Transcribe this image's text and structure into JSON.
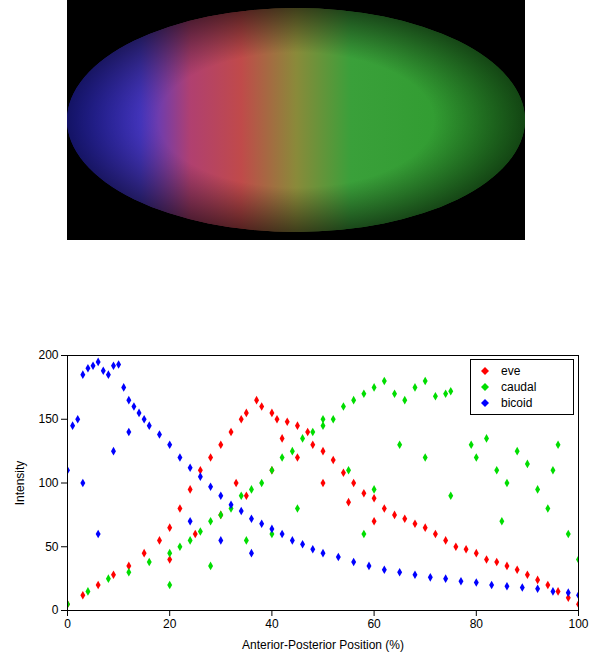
{
  "chart_data": {
    "type": "scatter",
    "x_label": "Anterior-Posterior Position (%)",
    "y_label": "Intensity",
    "xlim": [
      0,
      100
    ],
    "ylim": [
      0,
      200
    ],
    "xticks": [
      0,
      20,
      40,
      60,
      80,
      100
    ],
    "yticks": [
      0,
      50,
      100,
      150,
      200
    ],
    "grid": false,
    "legend": "top-right",
    "series": [
      {
        "name": "eve",
        "color": "#ff0000",
        "marker": "diamond",
        "x": [
          0,
          3,
          6,
          9,
          12,
          15,
          18,
          20,
          22,
          24,
          26,
          28,
          30,
          32,
          34,
          35,
          37,
          38,
          40,
          41,
          43,
          45,
          47,
          48,
          50,
          52,
          54,
          56,
          58,
          60,
          62,
          64,
          66,
          68,
          70,
          72,
          74,
          76,
          78,
          80,
          82,
          84,
          86,
          88,
          90,
          92,
          94,
          96,
          98,
          100,
          20,
          25,
          30,
          35,
          40,
          45,
          50,
          55,
          60,
          33,
          42
        ],
        "values": [
          5,
          12,
          20,
          28,
          35,
          45,
          55,
          65,
          80,
          95,
          110,
          120,
          130,
          140,
          150,
          155,
          165,
          160,
          155,
          150,
          148,
          145,
          140,
          130,
          125,
          118,
          108,
          100,
          92,
          88,
          80,
          75,
          72,
          68,
          65,
          60,
          55,
          50,
          48,
          45,
          40,
          38,
          35,
          32,
          28,
          24,
          20,
          15,
          10,
          5,
          40,
          60,
          75,
          90,
          110,
          120,
          100,
          85,
          70,
          100,
          135
        ]
      },
      {
        "name": "caudal",
        "color": "#00dd00",
        "marker": "diamond",
        "x": [
          0,
          4,
          8,
          12,
          16,
          20,
          22,
          24,
          26,
          28,
          30,
          32,
          34,
          36,
          38,
          40,
          42,
          44,
          46,
          48,
          50,
          52,
          54,
          56,
          58,
          60,
          62,
          64,
          66,
          68,
          70,
          72,
          74,
          75,
          80,
          82,
          84,
          86,
          88,
          90,
          92,
          94,
          96,
          98,
          100,
          79,
          20,
          28,
          35,
          40,
          45,
          55,
          60,
          65,
          70,
          75,
          85,
          95,
          50,
          58
        ],
        "values": [
          5,
          15,
          25,
          30,
          38,
          45,
          50,
          55,
          62,
          70,
          75,
          80,
          90,
          95,
          100,
          110,
          120,
          125,
          135,
          140,
          145,
          150,
          160,
          165,
          170,
          175,
          180,
          170,
          165,
          175,
          180,
          168,
          170,
          172,
          120,
          135,
          110,
          100,
          125,
          115,
          95,
          80,
          130,
          60,
          40,
          130,
          20,
          35,
          55,
          60,
          80,
          110,
          95,
          130,
          120,
          90,
          70,
          110,
          150,
          60
        ]
      },
      {
        "name": "bicoid",
        "color": "#0000ff",
        "marker": "diamond",
        "x": [
          0,
          1,
          2,
          3,
          4,
          5,
          6,
          7,
          8,
          9,
          10,
          11,
          12,
          13,
          14,
          15,
          16,
          18,
          20,
          22,
          24,
          26,
          28,
          30,
          32,
          34,
          36,
          38,
          40,
          42,
          44,
          46,
          48,
          50,
          53,
          56,
          59,
          62,
          65,
          68,
          71,
          74,
          77,
          80,
          83,
          86,
          89,
          92,
          95,
          98,
          100,
          3,
          6,
          9,
          12,
          24,
          30,
          36
        ],
        "values": [
          110,
          145,
          150,
          185,
          190,
          192,
          195,
          188,
          185,
          192,
          193,
          175,
          165,
          160,
          155,
          150,
          145,
          138,
          130,
          120,
          112,
          105,
          97,
          90,
          83,
          78,
          72,
          68,
          64,
          60,
          55,
          52,
          48,
          45,
          42,
          38,
          35,
          32,
          30,
          28,
          26,
          25,
          23,
          22,
          20,
          19,
          18,
          17,
          15,
          14,
          12,
          100,
          60,
          125,
          140,
          70,
          55,
          45
        ]
      }
    ]
  }
}
